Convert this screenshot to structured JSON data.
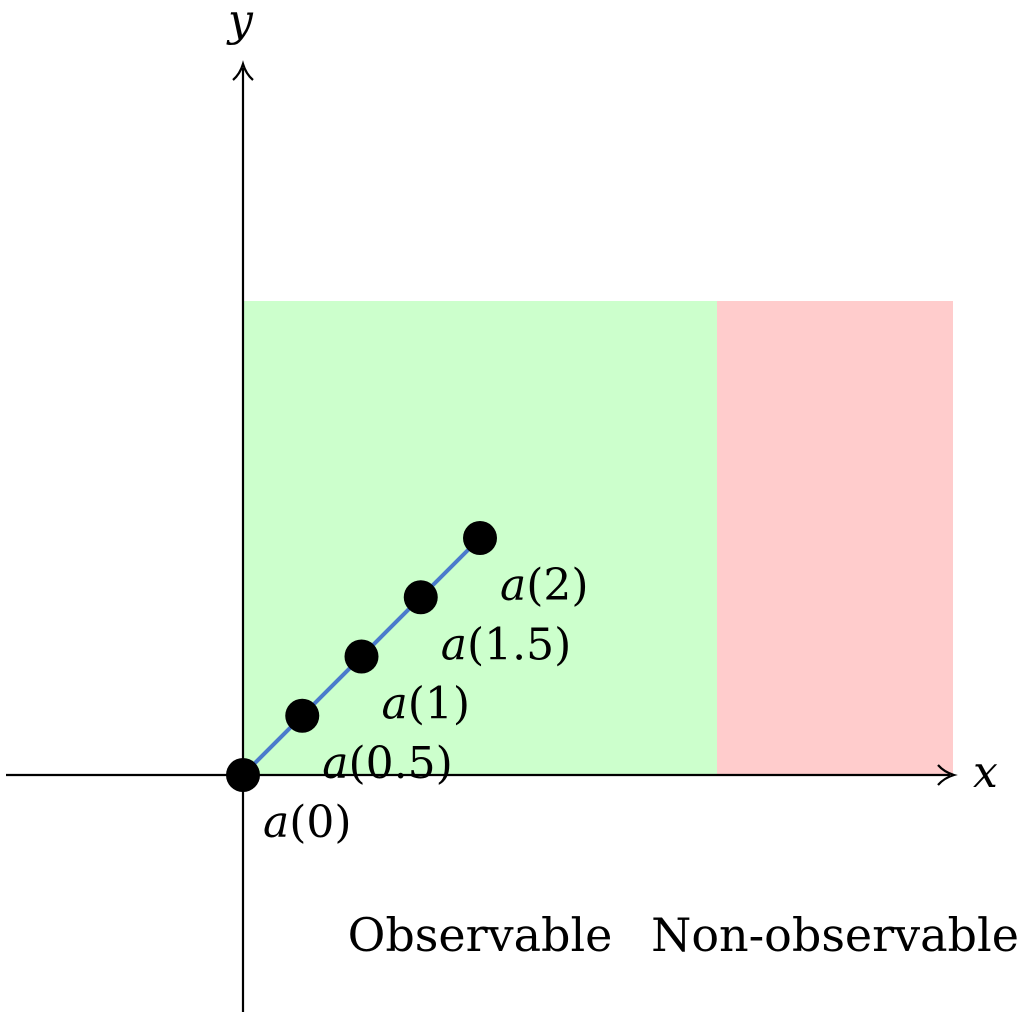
{
  "axes": {
    "x_label": "x",
    "y_label": "y"
  },
  "regions": [
    {
      "label": "Observable",
      "color": "#ccffcc"
    },
    {
      "label": "Non-observable",
      "color": "#ffcccc"
    }
  ],
  "curve": {
    "color": "#4a7bcc",
    "points": [
      {
        "t": 0,
        "fn": "a",
        "arg": "0"
      },
      {
        "t": 0.5,
        "fn": "a",
        "arg": "0.5"
      },
      {
        "t": 1,
        "fn": "a",
        "arg": "1"
      },
      {
        "t": 1.5,
        "fn": "a",
        "arg": "1.5"
      },
      {
        "t": 2,
        "fn": "a",
        "arg": "2"
      }
    ]
  }
}
